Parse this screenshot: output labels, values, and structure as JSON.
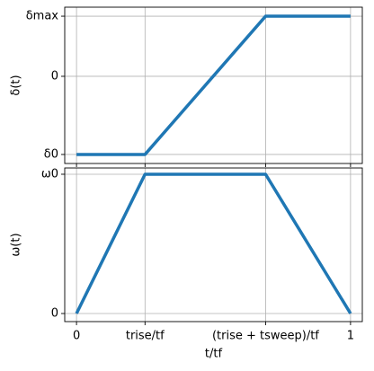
{
  "chart_data": [
    {
      "type": "line",
      "ylabel": "δ(t)",
      "x": [
        0,
        0.25,
        0.69,
        1
      ],
      "series": [
        {
          "color": "#1f77b4",
          "values": [
            -1.3,
            -1.3,
            1,
            1
          ]
        }
      ],
      "xlim": [
        -0.043,
        1.043
      ],
      "xticks": [
        0,
        0.25,
        0.69,
        1
      ],
      "ylim": [
        -1.45,
        1.15
      ],
      "yticks": [
        {
          "value": -1.3,
          "label": "δ0"
        },
        0,
        {
          "value": 1,
          "label": "δmax"
        }
      ],
      "grid": true
    },
    {
      "type": "line",
      "ylabel": "ω(t)",
      "xlabel": "t/tf",
      "x": [
        0,
        0.25,
        0.69,
        1
      ],
      "series": [
        {
          "color": "#1f77b4",
          "values": [
            0,
            1,
            1,
            0
          ]
        }
      ],
      "xlim": [
        -0.043,
        1.043
      ],
      "xticks": [
        0,
        {
          "value": 0.25,
          "label": "trise/tf"
        },
        {
          "value": 0.69,
          "label": "(trise + tsweep)/tf"
        },
        1
      ],
      "ylim": [
        -0.058,
        1.045
      ],
      "yticks": [
        0,
        {
          "value": 1,
          "label": "ω0"
        }
      ],
      "grid": true
    }
  ]
}
